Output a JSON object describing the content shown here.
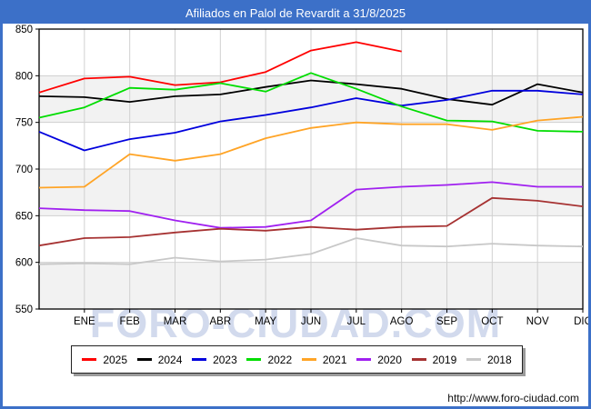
{
  "title": "Afiliados en Palol de Revardit a 31/8/2025",
  "watermark": "FORO-CIUDAD.COM",
  "footer": {
    "url": "http://www.foro-ciudad.com"
  },
  "colors": {
    "frame_blue": "#3c70c8",
    "band_gray": "#f2f2f2",
    "grid": "#d0d0d0",
    "axis": "#000000"
  },
  "chart_data": {
    "type": "line",
    "title": "Afiliados en Palol de Revardit a 31/8/2025",
    "x_categories": [
      "ENE",
      "FEB",
      "MAR",
      "ABR",
      "MAY",
      "JUN",
      "JUL",
      "AGO",
      "SEP",
      "OCT",
      "NOV",
      "DIC"
    ],
    "ylabel": "",
    "xlabel": "",
    "ylim": [
      550,
      850
    ],
    "y_ticks": [
      850,
      800,
      750,
      700,
      650,
      600,
      550
    ],
    "grid": true,
    "legend_position": "bottom",
    "note": "Each series has a lead-in point at the left plot edge (previous December) before ENE.",
    "series": [
      {
        "name": "2025",
        "color": "#ff0000",
        "start": 782,
        "values": [
          797,
          799,
          790,
          793,
          804,
          827,
          836,
          826
        ]
      },
      {
        "name": "2024",
        "color": "#000000",
        "start": 778,
        "values": [
          777,
          772,
          778,
          780,
          788,
          795,
          791,
          786,
          775,
          769,
          791,
          782
        ]
      },
      {
        "name": "2023",
        "color": "#0000dd",
        "start": 740,
        "values": [
          720,
          732,
          739,
          751,
          758,
          766,
          776,
          768,
          774,
          784,
          784,
          780
        ]
      },
      {
        "name": "2022",
        "color": "#00dd00",
        "start": 755,
        "values": [
          766,
          787,
          785,
          792,
          783,
          803,
          786,
          767,
          752,
          751,
          741,
          740
        ]
      },
      {
        "name": "2021",
        "color": "#ffa426",
        "start": 680,
        "values": [
          681,
          716,
          709,
          716,
          733,
          744,
          750,
          748,
          748,
          742,
          752,
          756
        ]
      },
      {
        "name": "2020",
        "color": "#a020f0",
        "start": 658,
        "values": [
          656,
          655,
          645,
          637,
          638,
          645,
          678,
          681,
          683,
          686,
          681,
          681
        ]
      },
      {
        "name": "2019",
        "color": "#a63232",
        "start": 618,
        "values": [
          626,
          627,
          632,
          636,
          634,
          638,
          635,
          638,
          639,
          669,
          666,
          660
        ]
      },
      {
        "name": "2018",
        "color": "#c8c8c8",
        "start": 598,
        "values": [
          599,
          598,
          605,
          601,
          603,
          609,
          626,
          618,
          617,
          620,
          618,
          617
        ]
      }
    ]
  }
}
